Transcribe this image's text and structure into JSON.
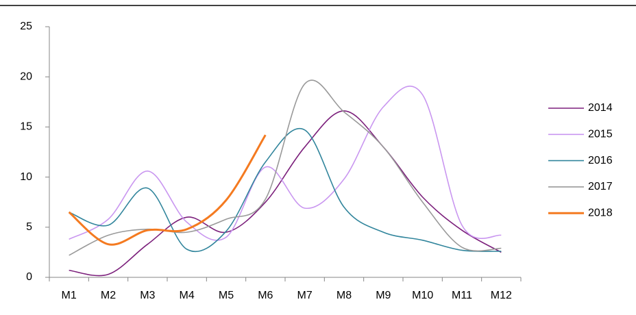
{
  "chart_data": {
    "type": "line",
    "categories": [
      "M1",
      "M2",
      "M3",
      "M4",
      "M5",
      "M6",
      "M7",
      "M8",
      "M9",
      "M10",
      "M11",
      "M12"
    ],
    "series": [
      {
        "name": "2014",
        "color": "#7b1f7b",
        "values": [
          0.7,
          0.3,
          3.3,
          6.0,
          4.5,
          7.5,
          13.0,
          16.6,
          13.0,
          8.0,
          4.7,
          2.5
        ]
      },
      {
        "name": "2015",
        "color": "#c996f0",
        "values": [
          3.8,
          5.8,
          10.6,
          5.5,
          4.0,
          11.0,
          6.9,
          9.8,
          17.0,
          18.2,
          5.2,
          4.2
        ]
      },
      {
        "name": "2016",
        "color": "#31859c",
        "values": [
          6.5,
          5.2,
          8.9,
          2.8,
          4.6,
          11.5,
          14.7,
          7.0,
          4.5,
          3.7,
          2.7,
          2.6
        ]
      },
      {
        "name": "2017",
        "color": "#999999",
        "values": [
          2.2,
          4.2,
          4.8,
          4.5,
          5.8,
          7.8,
          19.3,
          16.5,
          13.0,
          7.5,
          3.0,
          2.9
        ]
      },
      {
        "name": "2018",
        "color": "#f47a20",
        "values": [
          6.5,
          3.3,
          4.7,
          4.8,
          7.7,
          14.2,
          null,
          null,
          null,
          null,
          null,
          null
        ]
      }
    ],
    "ylim": [
      0,
      25
    ],
    "yticks": [
      0,
      5,
      10,
      15,
      20,
      25
    ],
    "grid": false,
    "legend": "right",
    "smooth": true
  }
}
